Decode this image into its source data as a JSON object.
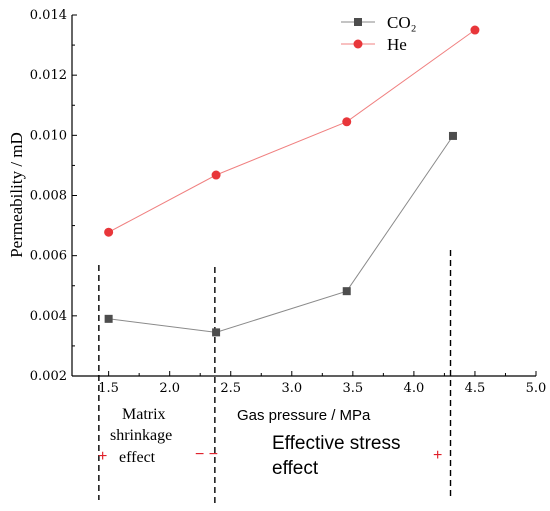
{
  "chart_data": {
    "type": "line",
    "xlabel": "Gas pressure / MPa",
    "ylabel": "Permeability / mD",
    "xlim": [
      1.2,
      5.0
    ],
    "ylim": [
      0.002,
      0.014
    ],
    "xticks": [
      1.5,
      2.0,
      2.5,
      3.0,
      3.5,
      4.0,
      4.5,
      5.0
    ],
    "xtick_labels": [
      "1.5",
      "2.0",
      "2.5",
      "3.0",
      "3.5",
      "4.0",
      "4.5",
      "5.0"
    ],
    "yticks": [
      0.002,
      0.004,
      0.006,
      0.008,
      0.01,
      0.012,
      0.014
    ],
    "ytick_labels": [
      "0.002",
      "0.004",
      "0.006",
      "0.008",
      "0.010",
      "0.012",
      "0.014"
    ],
    "legend_position": "top-right",
    "grid": false,
    "series": [
      {
        "name": "CO₂",
        "color": "#4d4d4d",
        "marker": "square",
        "x": [
          1.5,
          2.38,
          3.45,
          4.32
        ],
        "y": [
          0.0039,
          0.00345,
          0.00482,
          0.00998
        ]
      },
      {
        "name": "He",
        "color": "#e8363a",
        "marker": "circle",
        "x": [
          1.5,
          2.38,
          3.45,
          4.5
        ],
        "y": [
          0.00678,
          0.00868,
          0.01045,
          0.0135
        ]
      }
    ],
    "divider_lines_x": [
      1.42,
      2.37,
      4.3
    ],
    "annotations": {
      "matrix_line1": "Matrix",
      "matrix_line2": "shrinkage",
      "matrix_line3": "effect",
      "effective_line1": "Effective stress",
      "effective_line2": "effect",
      "plus_left": "+",
      "minus_mid": "− −",
      "plus_right": "+"
    }
  }
}
